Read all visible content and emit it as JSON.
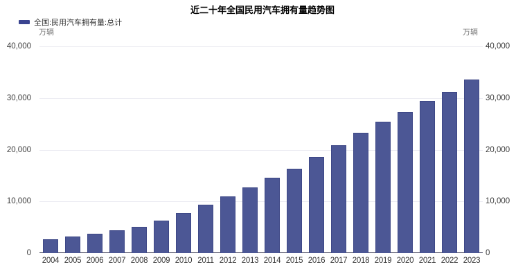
{
  "title": "近二十年全国民用汽车拥有量趋势图",
  "legend": {
    "label": "全国:民用汽车拥有量:总计",
    "marker_color": "#3A4490"
  },
  "y_axis": {
    "unit_left": "万辆",
    "unit_right": "万辆",
    "ticks": [
      "40,000",
      "30,000",
      "20,000",
      "10,000",
      "0"
    ]
  },
  "colors": {
    "bar": "#4C5795",
    "bar_border": "#3D4786",
    "grid_line": "#ECECF2",
    "axis_line": "#3B3B54",
    "tick_text": "#3C3C3C",
    "unit_text": "#7A7A7A",
    "legend_text": "#333333",
    "title_text": "#000000",
    "background": "#FFFFFF"
  },
  "chart_data": {
    "type": "bar",
    "title": "近二十年全国民用汽车拥有量趋势图",
    "series_name": "全国:民用汽车拥有量:总计",
    "categories": [
      "2004",
      "2005",
      "2006",
      "2007",
      "2008",
      "2009",
      "2010",
      "2011",
      "2012",
      "2013",
      "2014",
      "2015",
      "2016",
      "2017",
      "2018",
      "2019",
      "2020",
      "2021",
      "2022",
      "2023"
    ],
    "values": [
      2694,
      3160,
      3697,
      4358,
      5100,
      6281,
      7802,
      9356,
      10933,
      12670,
      14598,
      16284,
      18575,
      20907,
      23231,
      25376,
      27341,
      29419,
      31186,
      33618
    ],
    "ylabel": "万辆",
    "ylim": [
      0,
      40000
    ],
    "y_tick_interval": 10000,
    "grid": true,
    "legend_position": "top-left"
  }
}
